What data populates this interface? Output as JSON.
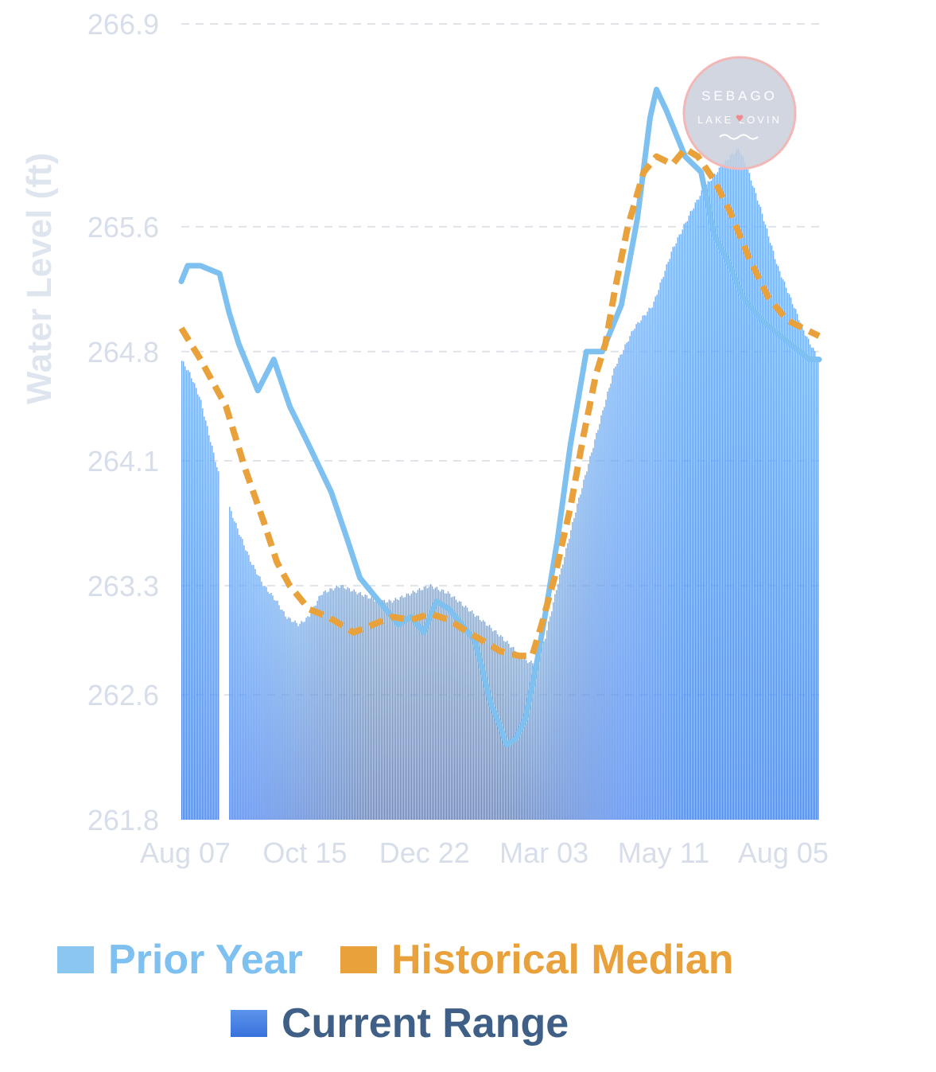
{
  "chart_data": {
    "type": "area",
    "ylabel": "Water Level (ft)",
    "xlabel": "",
    "title": "",
    "ylim": [
      261.8,
      266.9
    ],
    "yticks": [
      "266.9",
      "265.6",
      "264.8",
      "264.1",
      "263.3",
      "262.6",
      "261.8"
    ],
    "ytick_values": [
      266.9,
      265.6,
      264.8,
      264.1,
      263.3,
      262.6,
      261.8
    ],
    "xticks": [
      "Aug 07",
      "Oct 15",
      "Dec 22",
      "Mar 03",
      "May 11",
      "Aug 05"
    ],
    "xtick_positions": [
      0,
      0.1875,
      0.375,
      0.5625,
      0.75,
      0.9375
    ],
    "grid": "horizontal dashed",
    "legend_placement": "bottom",
    "series": [
      {
        "name": "Prior Year",
        "style": "line",
        "color": "#7ec0ef",
        "points": [
          [
            0,
            265.25
          ],
          [
            0.01,
            265.35
          ],
          [
            0.03,
            265.35
          ],
          [
            0.06,
            265.3
          ],
          [
            0.075,
            265.05
          ],
          [
            0.09,
            264.85
          ],
          [
            0.12,
            264.55
          ],
          [
            0.145,
            264.75
          ],
          [
            0.17,
            264.45
          ],
          [
            0.2,
            264.2
          ],
          [
            0.235,
            263.9
          ],
          [
            0.26,
            263.6
          ],
          [
            0.28,
            263.35
          ],
          [
            0.31,
            263.2
          ],
          [
            0.34,
            263.05
          ],
          [
            0.36,
            263.1
          ],
          [
            0.38,
            263.0
          ],
          [
            0.4,
            263.2
          ],
          [
            0.42,
            263.15
          ],
          [
            0.44,
            263.05
          ],
          [
            0.46,
            262.95
          ],
          [
            0.47,
            262.8
          ],
          [
            0.485,
            262.55
          ],
          [
            0.5,
            262.4
          ],
          [
            0.51,
            262.28
          ],
          [
            0.525,
            262.32
          ],
          [
            0.54,
            262.45
          ],
          [
            0.555,
            262.75
          ],
          [
            0.57,
            263.1
          ],
          [
            0.59,
            263.6
          ],
          [
            0.61,
            264.2
          ],
          [
            0.635,
            264.8
          ],
          [
            0.66,
            264.8
          ],
          [
            0.69,
            265.1
          ],
          [
            0.715,
            265.65
          ],
          [
            0.735,
            266.3
          ],
          [
            0.745,
            266.48
          ],
          [
            0.76,
            266.35
          ],
          [
            0.79,
            266.05
          ],
          [
            0.815,
            265.95
          ],
          [
            0.835,
            265.55
          ],
          [
            0.86,
            265.35
          ],
          [
            0.88,
            265.15
          ],
          [
            0.91,
            265.0
          ],
          [
            0.94,
            264.9
          ],
          [
            0.97,
            264.8
          ],
          [
            0.985,
            264.75
          ],
          [
            1.0,
            264.75
          ]
        ]
      },
      {
        "name": "Historical Median",
        "style": "dashed",
        "color": "#e9a23b",
        "points": [
          [
            0,
            264.95
          ],
          [
            0.03,
            264.75
          ],
          [
            0.07,
            264.45
          ],
          [
            0.1,
            264.05
          ],
          [
            0.13,
            263.7
          ],
          [
            0.15,
            263.45
          ],
          [
            0.17,
            263.3
          ],
          [
            0.2,
            263.15
          ],
          [
            0.23,
            263.1
          ],
          [
            0.25,
            263.05
          ],
          [
            0.27,
            263.0
          ],
          [
            0.3,
            263.05
          ],
          [
            0.33,
            263.1
          ],
          [
            0.36,
            263.08
          ],
          [
            0.39,
            263.12
          ],
          [
            0.42,
            263.08
          ],
          [
            0.45,
            263.0
          ],
          [
            0.48,
            262.93
          ],
          [
            0.5,
            262.88
          ],
          [
            0.53,
            262.85
          ],
          [
            0.55,
            262.85
          ],
          [
            0.565,
            263.05
          ],
          [
            0.585,
            263.35
          ],
          [
            0.61,
            263.8
          ],
          [
            0.63,
            264.25
          ],
          [
            0.65,
            264.65
          ],
          [
            0.665,
            264.85
          ],
          [
            0.68,
            265.2
          ],
          [
            0.7,
            265.6
          ],
          [
            0.725,
            265.95
          ],
          [
            0.745,
            266.05
          ],
          [
            0.77,
            266.0
          ],
          [
            0.79,
            266.1
          ],
          [
            0.81,
            266.05
          ],
          [
            0.835,
            265.9
          ],
          [
            0.86,
            265.7
          ],
          [
            0.89,
            265.4
          ],
          [
            0.92,
            265.15
          ],
          [
            0.95,
            265.0
          ],
          [
            0.975,
            264.95
          ],
          [
            1.0,
            264.9
          ]
        ]
      },
      {
        "name": "Current Range",
        "style": "area",
        "color": "#4d86ea",
        "points": [
          [
            0,
            264.75
          ],
          [
            0.015,
            264.65
          ],
          [
            0.03,
            264.5
          ],
          [
            0.045,
            264.25
          ],
          [
            0.06,
            264.0
          ],
          [
            0.061,
            null
          ],
          [
            0.075,
            null
          ],
          [
            0.076,
            263.8
          ],
          [
            0.09,
            263.65
          ],
          [
            0.11,
            263.45
          ],
          [
            0.13,
            263.3
          ],
          [
            0.15,
            263.2
          ],
          [
            0.165,
            263.1
          ],
          [
            0.185,
            263.05
          ],
          [
            0.2,
            263.1
          ],
          [
            0.22,
            263.25
          ],
          [
            0.25,
            263.3
          ],
          [
            0.28,
            263.25
          ],
          [
            0.31,
            263.2
          ],
          [
            0.33,
            263.2
          ],
          [
            0.36,
            263.25
          ],
          [
            0.39,
            263.3
          ],
          [
            0.42,
            263.25
          ],
          [
            0.45,
            263.15
          ],
          [
            0.48,
            263.05
          ],
          [
            0.5,
            262.98
          ],
          [
            0.52,
            262.9
          ],
          [
            0.54,
            262.82
          ],
          [
            0.555,
            262.8
          ],
          [
            0.57,
            262.95
          ],
          [
            0.59,
            263.3
          ],
          [
            0.62,
            263.8
          ],
          [
            0.65,
            264.25
          ],
          [
            0.68,
            264.7
          ],
          [
            0.71,
            264.95
          ],
          [
            0.74,
            265.1
          ],
          [
            0.77,
            265.45
          ],
          [
            0.8,
            265.7
          ],
          [
            0.82,
            265.85
          ],
          [
            0.84,
            265.95
          ],
          [
            0.86,
            266.05
          ],
          [
            0.875,
            266.1
          ],
          [
            0.89,
            265.95
          ],
          [
            0.91,
            265.7
          ],
          [
            0.935,
            265.35
          ],
          [
            0.96,
            265.1
          ],
          [
            0.98,
            264.9
          ],
          [
            1.0,
            264.75
          ]
        ]
      }
    ]
  },
  "watermark": {
    "line1": "SEBAGO",
    "line2": "LAKE LOVIN"
  },
  "legend": {
    "items": [
      {
        "label": "Prior Year",
        "color": "#7ec0ef",
        "text_color": "#7ec0ef"
      },
      {
        "label": "Historical Median",
        "color": "#e9a23b",
        "text_color": "#e9a23b"
      },
      {
        "label": "Current Range",
        "color": "#3c78e0",
        "text_color": "#3f5f86"
      }
    ]
  }
}
